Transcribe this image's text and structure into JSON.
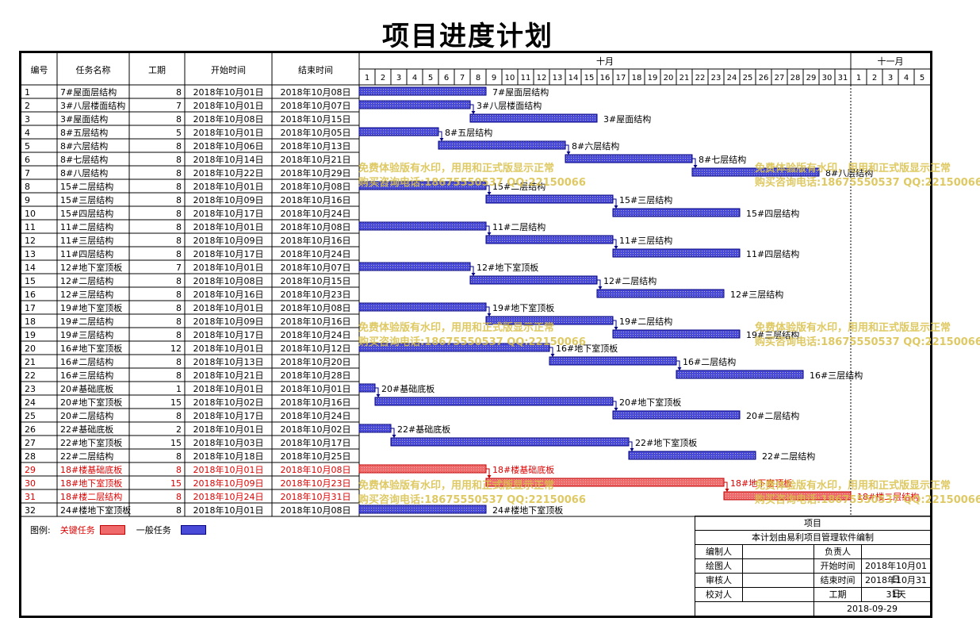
{
  "page_title": "项目进度计划",
  "columns": {
    "id": "编号",
    "name": "任务名称",
    "duration": "工期",
    "start": "开始时间",
    "end": "结束时间"
  },
  "months": [
    {
      "label": "十月",
      "days": [
        "1",
        "2",
        "3",
        "4",
        "5",
        "6",
        "7",
        "8",
        "9",
        "10",
        "11",
        "12",
        "13",
        "14",
        "15",
        "16",
        "17",
        "18",
        "19",
        "20",
        "21",
        "22",
        "23",
        "24",
        "25",
        "26",
        "27",
        "28",
        "29",
        "30",
        "31"
      ]
    },
    {
      "label": "十一月",
      "days": [
        "1",
        "2",
        "3",
        "4",
        "5"
      ]
    }
  ],
  "colors": {
    "critical_fill": "#ef6a6a",
    "critical_text": "#dd0000",
    "normal_fill": "#4a4ad8",
    "normal_edge": "#000080",
    "watermark": "#d9c04a"
  },
  "chart_data": {
    "type": "gantt",
    "title": "项目进度计划",
    "time_axis": {
      "start": "2018-10-01",
      "end": "2018-11-05",
      "unit": "day"
    },
    "tasks": [
      {
        "id": "1",
        "name": "7#屋面层结构",
        "duration": "8",
        "start": "2018年10月01日",
        "end": "2018年10月08日",
        "s": 1,
        "e": 8,
        "critical": false
      },
      {
        "id": "2",
        "name": "3#八层楼面结构",
        "duration": "7",
        "start": "2018年10月01日",
        "end": "2018年10月07日",
        "s": 1,
        "e": 7,
        "critical": false
      },
      {
        "id": "3",
        "name": "3#屋面结构",
        "duration": "8",
        "start": "2018年10月08日",
        "end": "2018年10月15日",
        "s": 8,
        "e": 15,
        "critical": false
      },
      {
        "id": "4",
        "name": "8#五层结构",
        "duration": "5",
        "start": "2018年10月01日",
        "end": "2018年10月05日",
        "s": 1,
        "e": 5,
        "critical": false
      },
      {
        "id": "5",
        "name": "8#六层结构",
        "duration": "8",
        "start": "2018年10月06日",
        "end": "2018年10月13日",
        "s": 6,
        "e": 13,
        "critical": false
      },
      {
        "id": "6",
        "name": "8#七层结构",
        "duration": "8",
        "start": "2018年10月14日",
        "end": "2018年10月21日",
        "s": 14,
        "e": 21,
        "critical": false
      },
      {
        "id": "7",
        "name": "8#八层结构",
        "duration": "8",
        "start": "2018年10月22日",
        "end": "2018年10月29日",
        "s": 22,
        "e": 29,
        "critical": false
      },
      {
        "id": "8",
        "name": "15#二层结构",
        "duration": "8",
        "start": "2018年10月01日",
        "end": "2018年10月08日",
        "s": 1,
        "e": 8,
        "critical": false
      },
      {
        "id": "9",
        "name": "15#三层结构",
        "duration": "8",
        "start": "2018年10月09日",
        "end": "2018年10月16日",
        "s": 9,
        "e": 16,
        "critical": false
      },
      {
        "id": "10",
        "name": "15#四层结构",
        "duration": "8",
        "start": "2018年10月17日",
        "end": "2018年10月24日",
        "s": 17,
        "e": 24,
        "critical": false
      },
      {
        "id": "11",
        "name": "11#二层结构",
        "duration": "8",
        "start": "2018年10月01日",
        "end": "2018年10月08日",
        "s": 1,
        "e": 8,
        "critical": false
      },
      {
        "id": "12",
        "name": "11#三层结构",
        "duration": "8",
        "start": "2018年10月09日",
        "end": "2018年10月16日",
        "s": 9,
        "e": 16,
        "critical": false
      },
      {
        "id": "13",
        "name": "11#四层结构",
        "duration": "8",
        "start": "2018年10月17日",
        "end": "2018年10月24日",
        "s": 17,
        "e": 24,
        "critical": false
      },
      {
        "id": "14",
        "name": "12#地下室顶板",
        "duration": "7",
        "start": "2018年10月01日",
        "end": "2018年10月07日",
        "s": 1,
        "e": 7,
        "critical": false
      },
      {
        "id": "15",
        "name": "12#二层结构",
        "duration": "8",
        "start": "2018年10月08日",
        "end": "2018年10月15日",
        "s": 8,
        "e": 15,
        "critical": false
      },
      {
        "id": "16",
        "name": "12#三层结构",
        "duration": "8",
        "start": "2018年10月16日",
        "end": "2018年10月23日",
        "s": 16,
        "e": 23,
        "critical": false
      },
      {
        "id": "17",
        "name": "19#地下室顶板",
        "duration": "8",
        "start": "2018年10月01日",
        "end": "2018年10月08日",
        "s": 1,
        "e": 8,
        "critical": false
      },
      {
        "id": "18",
        "name": "19#二层结构",
        "duration": "8",
        "start": "2018年10月09日",
        "end": "2018年10月16日",
        "s": 9,
        "e": 16,
        "critical": false
      },
      {
        "id": "19",
        "name": "19#三层结构",
        "duration": "8",
        "start": "2018年10月17日",
        "end": "2018年10月24日",
        "s": 17,
        "e": 24,
        "critical": false
      },
      {
        "id": "20",
        "name": "16#地下室顶板",
        "duration": "12",
        "start": "2018年10月01日",
        "end": "2018年10月12日",
        "s": 1,
        "e": 12,
        "critical": false
      },
      {
        "id": "21",
        "name": "16#二层结构",
        "duration": "8",
        "start": "2018年10月13日",
        "end": "2018年10月20日",
        "s": 13,
        "e": 20,
        "critical": false
      },
      {
        "id": "22",
        "name": "16#三层结构",
        "duration": "8",
        "start": "2018年10月21日",
        "end": "2018年10月28日",
        "s": 21,
        "e": 28,
        "critical": false
      },
      {
        "id": "23",
        "name": "20#基础底板",
        "duration": "1",
        "start": "2018年10月01日",
        "end": "2018年10月01日",
        "s": 1,
        "e": 1,
        "critical": false
      },
      {
        "id": "24",
        "name": "20#地下室顶板",
        "duration": "15",
        "start": "2018年10月02日",
        "end": "2018年10月16日",
        "s": 2,
        "e": 16,
        "critical": false
      },
      {
        "id": "25",
        "name": "20#二层结构",
        "duration": "8",
        "start": "2018年10月17日",
        "end": "2018年10月24日",
        "s": 17,
        "e": 24,
        "critical": false
      },
      {
        "id": "26",
        "name": "22#基础底板",
        "duration": "2",
        "start": "2018年10月01日",
        "end": "2018年10月02日",
        "s": 1,
        "e": 2,
        "critical": false
      },
      {
        "id": "27",
        "name": "22#地下室顶板",
        "duration": "15",
        "start": "2018年10月03日",
        "end": "2018年10月17日",
        "s": 3,
        "e": 17,
        "critical": false
      },
      {
        "id": "28",
        "name": "22#二层结构",
        "duration": "8",
        "start": "2018年10月18日",
        "end": "2018年10月25日",
        "s": 18,
        "e": 25,
        "critical": false
      },
      {
        "id": "29",
        "name": "18#楼基础底板",
        "duration": "8",
        "start": "2018年10月01日",
        "end": "2018年10月08日",
        "s": 1,
        "e": 8,
        "critical": true
      },
      {
        "id": "30",
        "name": "18#地下室顶板",
        "duration": "15",
        "start": "2018年10月09日",
        "end": "2018年10月23日",
        "s": 9,
        "e": 23,
        "critical": true
      },
      {
        "id": "31",
        "name": "18#楼二层结构",
        "duration": "8",
        "start": "2018年10月24日",
        "end": "2018年10月31日",
        "s": 24,
        "e": 31,
        "critical": true
      },
      {
        "id": "32",
        "name": "24#楼地下室顶板",
        "duration": "8",
        "start": "2018年10月01日",
        "end": "2018年10月08日",
        "s": 1,
        "e": 8,
        "critical": false
      }
    ]
  },
  "legend": {
    "label": "图例:",
    "critical": "关键任务",
    "normal": "一般任务"
  },
  "info": {
    "header": "项目",
    "subtitle": "本计划由易利项目管理软件编制",
    "compiler": "编制人",
    "owner": "负责人",
    "drawer": "绘图人",
    "start_label": "开始时间",
    "start_value": "2018年10月01日",
    "reviewer": "审核人",
    "end_label": "结束时间",
    "end_value": "2018年10月31日",
    "checker": "校对人",
    "duration_label": "工期",
    "duration_value": "31天",
    "date": "2018-09-29"
  },
  "watermark": {
    "line1": "免费体验版有水印，用用和正式版显示正常",
    "line2": "购买咨询电话:18675550537 QQ:22150066"
  }
}
